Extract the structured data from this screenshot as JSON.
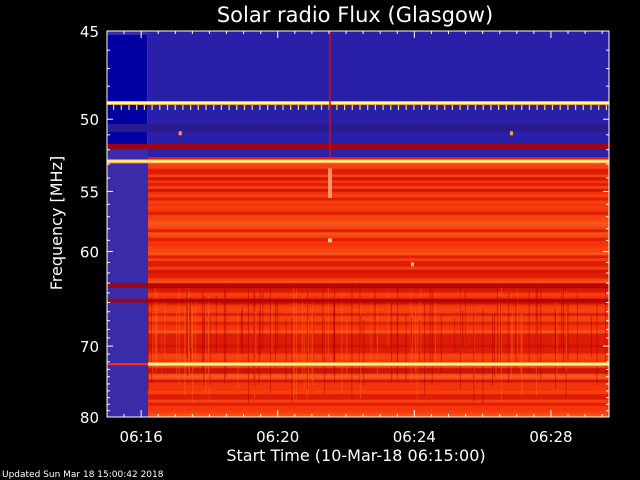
{
  "chart_data": {
    "type": "heatmap",
    "title": "Solar radio Flux (Glasgow)",
    "xlabel": "Start Time (10-Mar-18 06:15:00)",
    "ylabel": "Frequency [MHz]",
    "x_tick_labels": [
      "06:16",
      "06:20",
      "06:24",
      "06:28"
    ],
    "x_ticks_minutes": [
      1,
      5,
      9,
      13
    ],
    "xlim_minutes": [
      0,
      14.7
    ],
    "y_tick_labels": [
      "45",
      "50",
      "55",
      "60",
      "70",
      "80"
    ],
    "y_ticks": [
      45,
      50,
      55,
      60,
      70,
      80
    ],
    "ylim": [
      45,
      80
    ],
    "y_scale": "reciprocal",
    "colormap": [
      "#000066",
      "#2020c0",
      "#e00000",
      "#ff4000",
      "#ffa030",
      "#ffff80"
    ],
    "rfi_free_start_minutes": 1.2,
    "bright_lines_mhz": [
      49.0,
      52.8,
      72.3
    ],
    "dark_bands_mhz": [
      {
        "from": 50.3,
        "to": 50.8
      },
      {
        "from": 51.6,
        "to": 52.0
      },
      {
        "from": 63.0,
        "to": 63.5
      },
      {
        "from": 64.6,
        "to": 65.0
      }
    ],
    "footer": "Updated Sun Mar 18 15:00:42 2018"
  },
  "colors": {
    "background": "#000000",
    "axis": "#ffffff",
    "low": "#1a1aa0",
    "mid": "#e01000",
    "high": "#ffff80"
  }
}
